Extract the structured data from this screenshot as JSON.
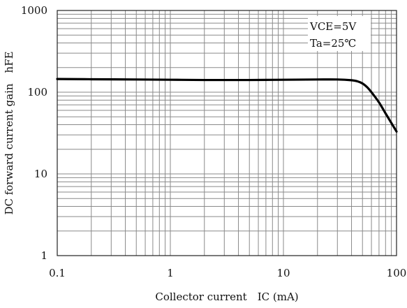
{
  "chart_data": {
    "type": "line",
    "title": "",
    "xlabel": "Collector current　IC (mA)",
    "ylabel": "DC forward current gain　hFE",
    "x_scale": "log",
    "y_scale": "log",
    "xlim": [
      0.1,
      100
    ],
    "ylim": [
      1,
      1000
    ],
    "grid": true,
    "x_ticks": [
      "0.1",
      "1",
      "10",
      "100"
    ],
    "y_ticks": [
      "1",
      "10",
      "100",
      "1000"
    ],
    "annotations": [
      "VCE=5V",
      "Ta=25℃"
    ],
    "annotation_placement": "top-right",
    "series": [
      {
        "x": [
          0.1,
          0.2,
          0.5,
          1,
          2,
          5,
          10,
          20,
          30,
          40,
          45,
          50,
          55,
          60,
          70,
          80,
          90,
          100
        ],
        "y": [
          145,
          144,
          143,
          142,
          141,
          141,
          142,
          143,
          143,
          140,
          136,
          128,
          115,
          100,
          75,
          55,
          42,
          33
        ]
      }
    ]
  }
}
